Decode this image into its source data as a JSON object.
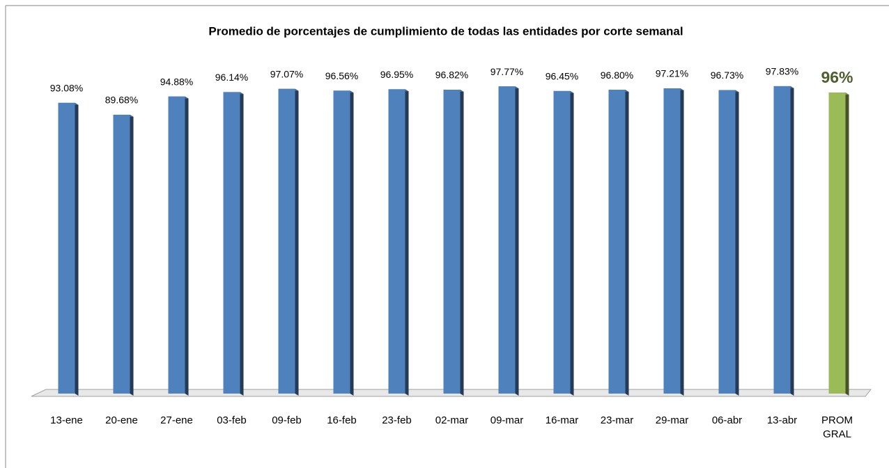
{
  "chart_data": {
    "type": "bar",
    "title": "Promedio de porcentajes de cumplimiento de todas las entidades por corte semanal",
    "categories": [
      "13-ene",
      "20-ene",
      "27-ene",
      "03-feb",
      "09-feb",
      "16-feb",
      "23-feb",
      "02-mar",
      "09-mar",
      "16-mar",
      "23-mar",
      "29-mar",
      "06-abr",
      "13-abr",
      "PROM GRAL"
    ],
    "values": [
      93.08,
      89.68,
      94.88,
      96.14,
      97.07,
      96.56,
      96.95,
      96.82,
      97.77,
      96.45,
      96.8,
      97.21,
      96.73,
      97.83,
      96
    ],
    "value_labels": [
      "93.08%",
      "89.68%",
      "94.88%",
      "96.14%",
      "97.07%",
      "96.56%",
      "96.95%",
      "96.82%",
      "97.77%",
      "96.45%",
      "96.80%",
      "97.21%",
      "96.73%",
      "97.83%",
      "96%"
    ],
    "colors": [
      "#4f81bd",
      "#4f81bd",
      "#4f81bd",
      "#4f81bd",
      "#4f81bd",
      "#4f81bd",
      "#4f81bd",
      "#4f81bd",
      "#4f81bd",
      "#4f81bd",
      "#4f81bd",
      "#4f81bd",
      "#4f81bd",
      "#4f81bd",
      "#9bbb59"
    ],
    "ylim": [
      10,
      100
    ]
  }
}
